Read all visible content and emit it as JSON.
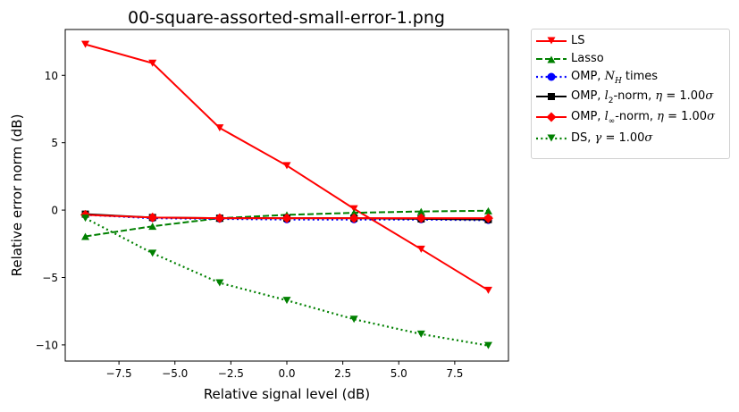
{
  "chart_data": {
    "type": "line",
    "title": "00-square-assorted-small-error-1.png",
    "xlabel": "Relative signal level (dB)",
    "ylabel": "Relative error norm (dB)",
    "xlim": [
      -9.9,
      9.9
    ],
    "ylim": [
      -11.2,
      13.4
    ],
    "xticks": [
      -7.5,
      -5.0,
      -2.5,
      0.0,
      2.5,
      5.0,
      7.5
    ],
    "xtick_labels": [
      "−7.5",
      "−5.0",
      "−2.5",
      "0.0",
      "2.5",
      "5.0",
      "7.5"
    ],
    "yticks": [
      -10,
      -5,
      0,
      5,
      10
    ],
    "ytick_labels": [
      "−10",
      "−5",
      "0",
      "5",
      "10"
    ],
    "grid": false,
    "legend_position": "outside-right-top",
    "x": [
      -9,
      -6,
      -3,
      0,
      3,
      6,
      9
    ],
    "series": [
      {
        "name": "LS",
        "color": "#ff0000",
        "style": "solid",
        "marker": "triangle-down",
        "values": [
          12.3,
          10.9,
          6.1,
          3.3,
          0.1,
          -2.9,
          -5.95
        ]
      },
      {
        "name": "Lasso",
        "color": "#008000",
        "style": "dashed",
        "marker": "triangle-up",
        "values": [
          -1.95,
          -1.2,
          -0.6,
          -0.35,
          -0.2,
          -0.1,
          -0.05
        ]
      },
      {
        "name": "OMP, N_H times",
        "color": "#0000ff",
        "style": "dotted",
        "marker": "circle",
        "values": [
          -0.35,
          -0.6,
          -0.65,
          -0.7,
          -0.7,
          -0.7,
          -0.75
        ]
      },
      {
        "name": "OMP, l_2-norm, η = 1.00σ",
        "color": "#000000",
        "style": "solid",
        "marker": "square",
        "values": [
          -0.3,
          -0.55,
          -0.6,
          -0.6,
          -0.6,
          -0.65,
          -0.7
        ]
      },
      {
        "name": "OMP, l_∞-norm, η = 1.00σ",
        "color": "#ff0000",
        "style": "solid",
        "marker": "diamond",
        "values": [
          -0.35,
          -0.55,
          -0.6,
          -0.6,
          -0.6,
          -0.6,
          -0.6
        ]
      },
      {
        "name": "DS, γ = 1.00σ",
        "color": "#008000",
        "style": "dotted",
        "marker": "triangle-down",
        "values": [
          -0.6,
          -3.2,
          -5.4,
          -6.7,
          -8.1,
          -9.2,
          -10.05
        ]
      }
    ]
  },
  "legend": {
    "ls": "LS",
    "lasso": "Lasso",
    "omp_nh_prefix": "OMP, ",
    "omp_nh_var": "N",
    "omp_nh_sub": "H",
    "omp_nh_suffix": " times",
    "omp_l2_prefix": "OMP, ",
    "omp_l2_var": "l",
    "omp_l2_sub": "2",
    "omp_l2_mid": "-norm, ",
    "omp_l2_eta": "η",
    "omp_l2_eq": " = 1.00",
    "omp_l2_sigma": "σ",
    "omp_linf_prefix": "OMP, ",
    "omp_linf_var": "l",
    "omp_linf_sub": "∞",
    "omp_linf_mid": "-norm, ",
    "omp_linf_eta": "η",
    "omp_linf_eq": " = 1.00",
    "omp_linf_sigma": "σ",
    "ds_prefix": "DS, ",
    "ds_gamma": "γ",
    "ds_eq": " = 1.00",
    "ds_sigma": "σ"
  }
}
